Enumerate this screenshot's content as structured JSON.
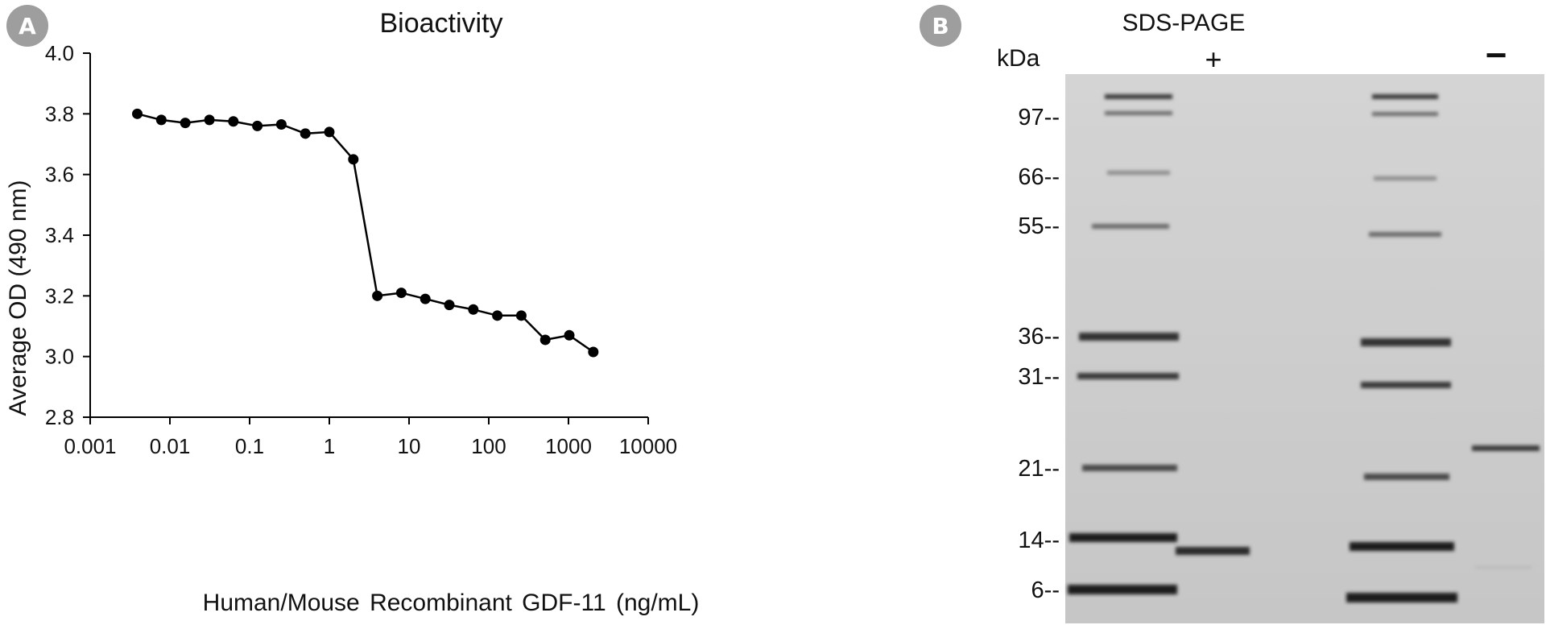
{
  "panels": {
    "a": {
      "badge": "A"
    },
    "b": {
      "badge": "B"
    }
  },
  "colors": {
    "badge": "#9e9e9e",
    "line": "#000000",
    "gel_background": "#cfcfcf",
    "band": "#1c1c1c"
  },
  "chart_data": [
    {
      "type": "line",
      "title": "Bioactivity",
      "xlabel": "Human/Mouse Recombinant GDF-11 (ng/mL)",
      "ylabel": "Average OD (490 nm)",
      "xscale": "log",
      "xlim": [
        0.001,
        10000
      ],
      "ylim": [
        2.8,
        4.0
      ],
      "xticks": [
        "0.001",
        "0.01",
        "0.1",
        "1",
        "10",
        "100",
        "1000",
        "10000"
      ],
      "yticks": [
        "2.8",
        "3.0",
        "3.2",
        "3.4",
        "3.6",
        "3.8",
        "4.0"
      ],
      "grid": false,
      "series": [
        {
          "x": [
            0.0039,
            0.0078,
            0.0156,
            0.0313,
            0.0625,
            0.125,
            0.25,
            0.5,
            1,
            2,
            4,
            8,
            16,
            32,
            64,
            128,
            256,
            512,
            1024,
            2048
          ],
          "values": [
            3.8,
            3.78,
            3.77,
            3.78,
            3.775,
            3.76,
            3.765,
            3.735,
            3.74,
            3.65,
            3.2,
            3.21,
            3.19,
            3.17,
            3.155,
            3.135,
            3.135,
            3.055,
            3.07,
            3.015
          ]
        }
      ]
    }
  ],
  "gel": {
    "title": "SDS-PAGE",
    "unit": "kDa",
    "lane_plus": "+",
    "lane_minus": "−",
    "markers": [
      "97--",
      "66--",
      "55--",
      "36--",
      "31--",
      "21--",
      "14--",
      "6--"
    ]
  }
}
